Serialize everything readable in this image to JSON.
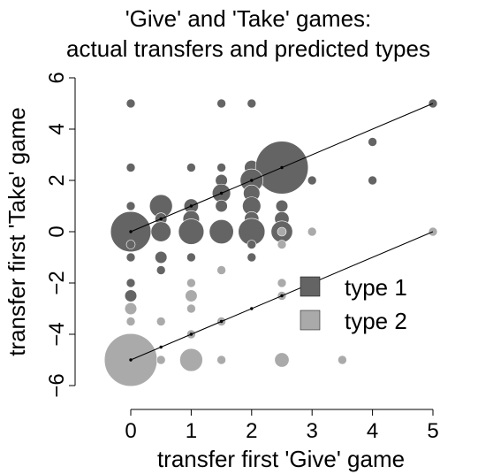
{
  "chart_data": {
    "type": "scatter",
    "title_lines": [
      "'Give' and 'Take' games:",
      "actual transfers and predicted types"
    ],
    "xlabel": "transfer first 'Give' game",
    "ylabel": "transfer first 'Take' game",
    "xlim": [
      0,
      5
    ],
    "ylim": [
      -6,
      6
    ],
    "x_ticks": [
      "0",
      "1",
      "2",
      "3",
      "4",
      "5"
    ],
    "y_ticks": [
      "−6",
      "−4",
      "−2",
      "0",
      "2",
      "4",
      "6"
    ],
    "x_tick_values": [
      0,
      1,
      2,
      3,
      4,
      5
    ],
    "y_tick_values": [
      -6,
      -4,
      -2,
      0,
      2,
      4,
      6
    ],
    "legend_position": "bottom-right",
    "series": [
      {
        "name": "type 1",
        "color": "#646464",
        "points": [
          {
            "x": 0,
            "y": 5,
            "n": 1
          },
          {
            "x": 1.5,
            "y": 5,
            "n": 1
          },
          {
            "x": 2,
            "y": 5,
            "n": 1
          },
          {
            "x": 5,
            "y": 5,
            "n": 1
          },
          {
            "x": 4,
            "y": 3.5,
            "n": 1
          },
          {
            "x": 0,
            "y": 2.5,
            "n": 1
          },
          {
            "x": 1,
            "y": 2.5,
            "n": 1
          },
          {
            "x": 1.5,
            "y": 2.5,
            "n": 1
          },
          {
            "x": 2,
            "y": 2.5,
            "n": 3
          },
          {
            "x": 2.5,
            "y": 2.5,
            "n": 45
          },
          {
            "x": 1.5,
            "y": 2,
            "n": 2
          },
          {
            "x": 2,
            "y": 2,
            "n": 8
          },
          {
            "x": 3,
            "y": 2,
            "n": 1
          },
          {
            "x": 4,
            "y": 2,
            "n": 1
          },
          {
            "x": 1.5,
            "y": 1.5,
            "n": 5
          },
          {
            "x": 2,
            "y": 1.5,
            "n": 4
          },
          {
            "x": 0,
            "y": 1,
            "n": 1
          },
          {
            "x": 0.5,
            "y": 1,
            "n": 8
          },
          {
            "x": 1,
            "y": 1,
            "n": 3
          },
          {
            "x": 1.5,
            "y": 1,
            "n": 2
          },
          {
            "x": 2,
            "y": 1,
            "n": 5
          },
          {
            "x": 2.5,
            "y": 1,
            "n": 2
          },
          {
            "x": 0,
            "y": 0.5,
            "n": 2
          },
          {
            "x": 0.5,
            "y": 0.5,
            "n": 2
          },
          {
            "x": 1,
            "y": 0.5,
            "n": 4
          },
          {
            "x": 2,
            "y": 0.5,
            "n": 3
          },
          {
            "x": 2.5,
            "y": 0.5,
            "n": 3
          },
          {
            "x": 0,
            "y": 0,
            "n": 26
          },
          {
            "x": 0.5,
            "y": 0,
            "n": 6
          },
          {
            "x": 1,
            "y": 0,
            "n": 10
          },
          {
            "x": 1.5,
            "y": 0,
            "n": 9
          },
          {
            "x": 2,
            "y": 0,
            "n": 11
          },
          {
            "x": 2.5,
            "y": 0,
            "n": 7
          },
          {
            "x": 0,
            "y": -0.5,
            "n": 1
          },
          {
            "x": 2,
            "y": -0.5,
            "n": 1
          },
          {
            "x": 0,
            "y": -1,
            "n": 1
          },
          {
            "x": 0.5,
            "y": -1,
            "n": 2
          },
          {
            "x": 1,
            "y": -1,
            "n": 1
          },
          {
            "x": 2,
            "y": -1,
            "n": 1
          },
          {
            "x": 0.5,
            "y": -1.5,
            "n": 1
          },
          {
            "x": 0,
            "y": -2,
            "n": 1
          },
          {
            "x": 0,
            "y": -2.5,
            "n": 2
          }
        ]
      },
      {
        "name": "type 2",
        "color": "#aaaaaa",
        "points": [
          {
            "x": 5,
            "y": 0,
            "n": 1
          },
          {
            "x": 3,
            "y": 0,
            "n": 1
          },
          {
            "x": 2.5,
            "y": 0,
            "n": 1
          },
          {
            "x": 2.5,
            "y": -0.5,
            "n": 1
          },
          {
            "x": 1.5,
            "y": -1.5,
            "n": 1
          },
          {
            "x": 1,
            "y": -2,
            "n": 1
          },
          {
            "x": 2.5,
            "y": -2,
            "n": 1
          },
          {
            "x": 1,
            "y": -2.5,
            "n": 2
          },
          {
            "x": 2.5,
            "y": -2.5,
            "n": 1
          },
          {
            "x": 0,
            "y": -3,
            "n": 2
          },
          {
            "x": 1,
            "y": -3,
            "n": 1
          },
          {
            "x": 0,
            "y": -3.5,
            "n": 1
          },
          {
            "x": 0.5,
            "y": -3.5,
            "n": 1
          },
          {
            "x": 1.5,
            "y": -3.5,
            "n": 1
          },
          {
            "x": 1,
            "y": -4,
            "n": 1
          },
          {
            "x": 0,
            "y": -4.5,
            "n": 2
          },
          {
            "x": 0,
            "y": -5,
            "n": 45
          },
          {
            "x": 0.5,
            "y": -5,
            "n": 1
          },
          {
            "x": 1,
            "y": -5,
            "n": 8
          },
          {
            "x": 1.5,
            "y": -5,
            "n": 1
          },
          {
            "x": 2.5,
            "y": -5,
            "n": 3
          },
          {
            "x": 3.5,
            "y": -5,
            "n": 1
          }
        ]
      }
    ],
    "prediction_lines": [
      {
        "name": "type 1",
        "from": [
          0,
          0
        ],
        "to": [
          5,
          5
        ]
      },
      {
        "name": "type 2",
        "from": [
          0,
          -5
        ],
        "to": [
          5,
          0
        ]
      }
    ],
    "type1_dots": [
      [
        0,
        0
      ],
      [
        0.5,
        0.5
      ],
      [
        1,
        1
      ],
      [
        1.5,
        1.5
      ],
      [
        2,
        2
      ],
      [
        2.5,
        2.5
      ]
    ],
    "type2_dots": [
      [
        0,
        -5
      ],
      [
        0.5,
        -4.5
      ],
      [
        1,
        -4
      ],
      [
        1.5,
        -3.5
      ],
      [
        2,
        -3
      ],
      [
        2.5,
        -2.5
      ]
    ],
    "grid": false
  }
}
